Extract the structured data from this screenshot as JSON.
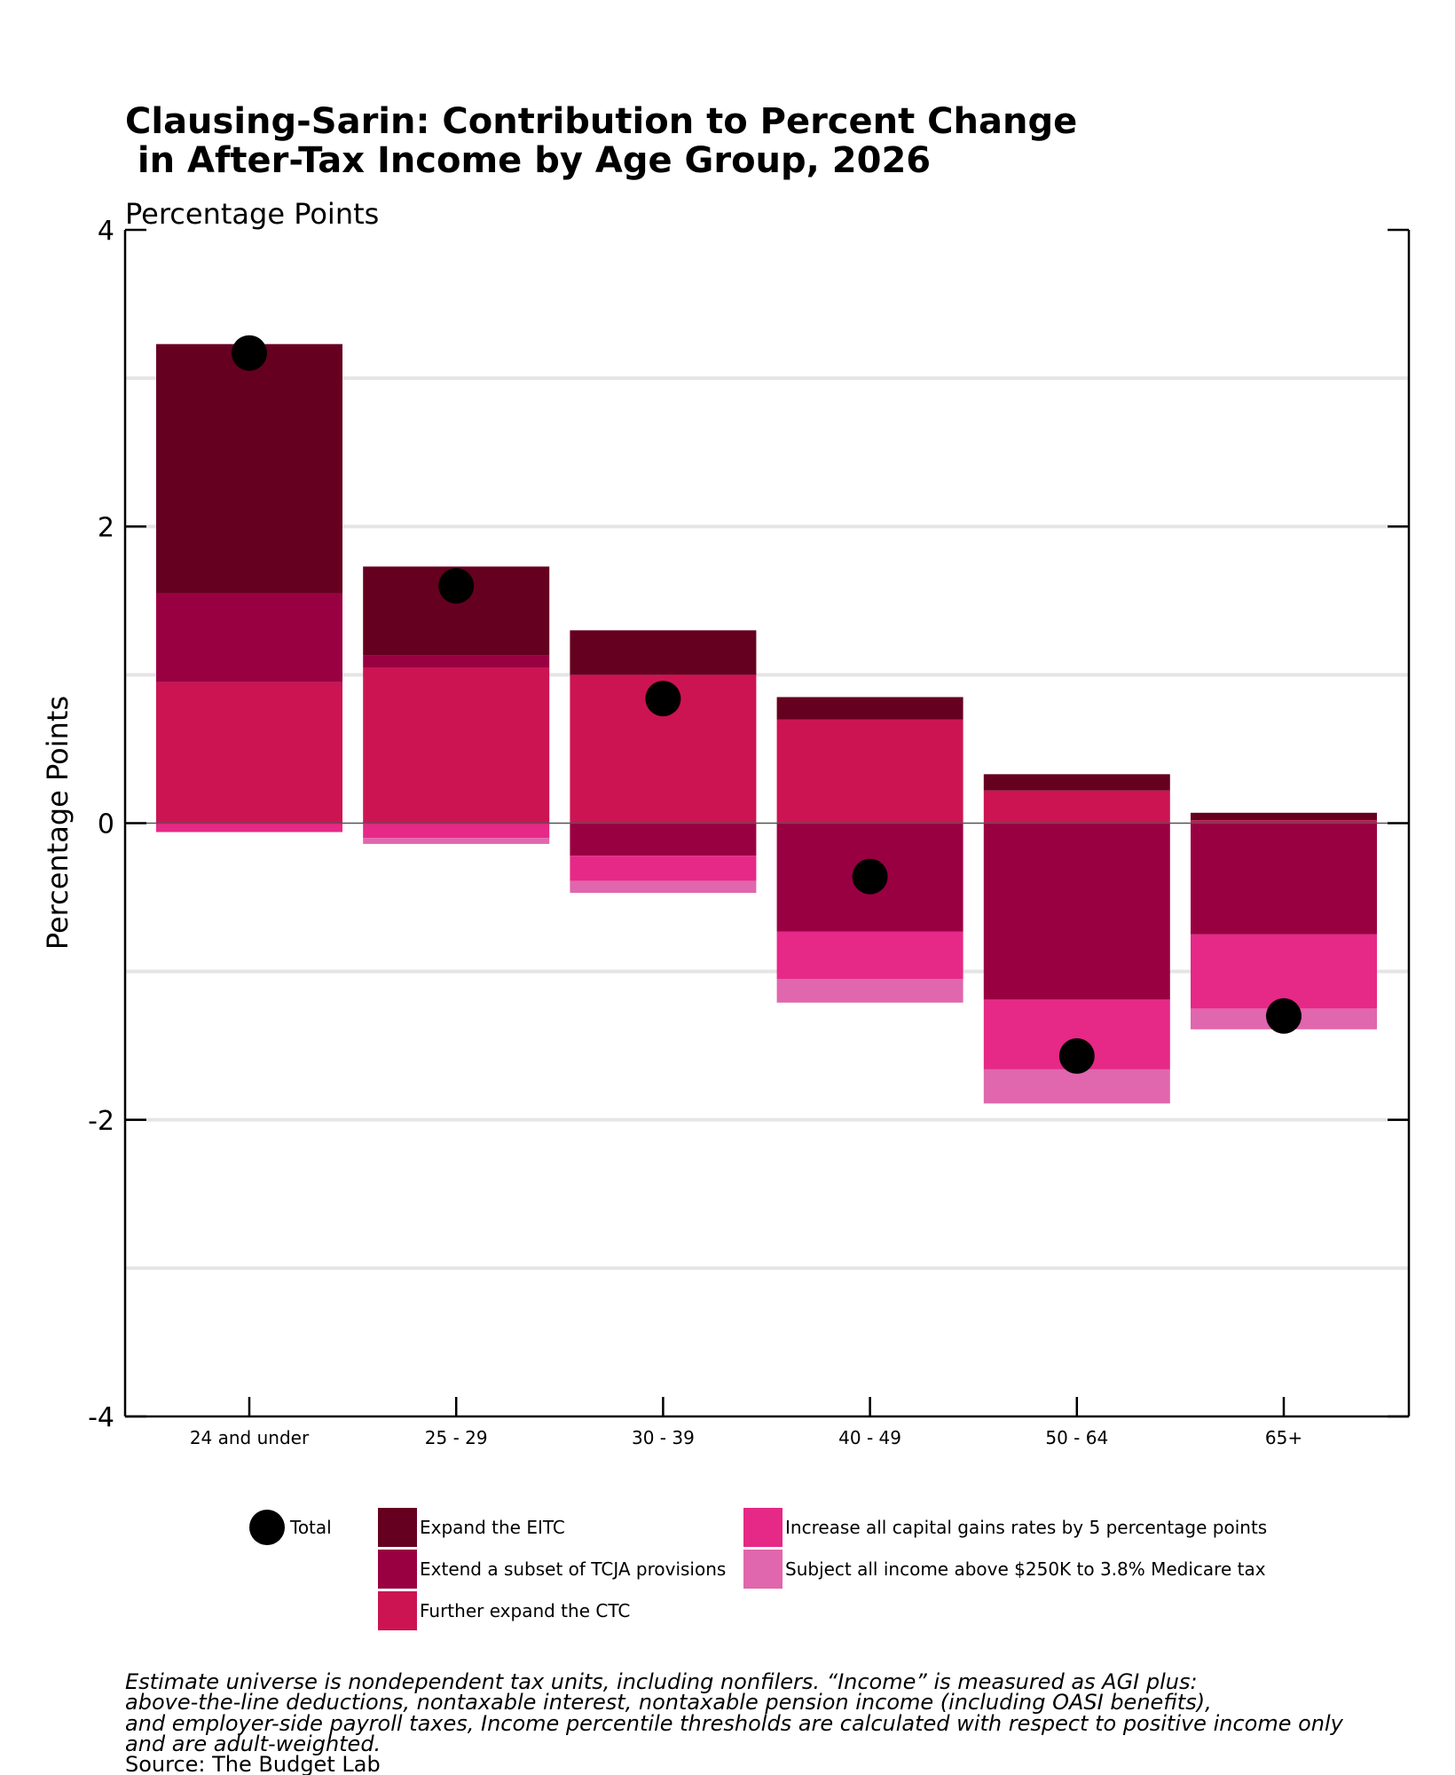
{
  "chart_data": {
    "type": "bar",
    "stacked": true,
    "title_line1": "Clausing-Sarin: Contribution to Percent Change",
    "title_line2": " in After-Tax Income by Age Group, 2026",
    "subtitle": "Percentage Points",
    "ylabel": "Percentage Points",
    "xlabel": "",
    "ylim": [
      -4,
      4
    ],
    "yticks": [
      -4,
      -2,
      0,
      2,
      4
    ],
    "ytick_labels": [
      "-4",
      "-2",
      "0",
      "2",
      "4"
    ],
    "grid": true,
    "categories": [
      "24 and under",
      "25 - 29",
      "30 - 39",
      "40 - 49",
      "50 - 64",
      "65+"
    ],
    "series": [
      {
        "name": "Further expand the CTC",
        "color": "#cc1453",
        "values": [
          0.95,
          1.05,
          1.0,
          0.7,
          0.22,
          0.02
        ]
      },
      {
        "name": "Extend a subset of TCJA provisions",
        "color": "#990042",
        "values": [
          0.6,
          0.08,
          -0.22,
          -0.73,
          -1.19,
          -0.75
        ]
      },
      {
        "name": "Expand the EITC",
        "color": "#660020",
        "values": [
          1.68,
          0.6,
          0.3,
          0.15,
          0.11,
          0.05
        ]
      },
      {
        "name": "Increase all capital gains rates by 5 percentage points",
        "color": "#e62887",
        "values": [
          -0.06,
          -0.1,
          -0.17,
          -0.32,
          -0.47,
          -0.5
        ]
      },
      {
        "name": "Subject all income above $250K to 3.8% Medicare tax",
        "color": "#e066ad",
        "values": [
          0.0,
          -0.04,
          -0.08,
          -0.16,
          -0.23,
          -0.14
        ]
      }
    ],
    "totals": {
      "name": "Total",
      "color": "#000000",
      "values": [
        3.17,
        1.6,
        0.84,
        -0.36,
        -1.57,
        -1.3
      ]
    },
    "legend_position": "bottom",
    "legend": [
      {
        "label": "Total",
        "kind": "dot",
        "color": "#000000"
      },
      {
        "label": "Expand the EITC",
        "kind": "box",
        "color": "#660020"
      },
      {
        "label": "Extend a subset of TCJA provisions",
        "kind": "box",
        "color": "#990042"
      },
      {
        "label": "Further expand the CTC",
        "kind": "box",
        "color": "#cc1453"
      },
      {
        "label": "Increase all capital gains rates by 5 percentage points",
        "kind": "box",
        "color": "#e62887"
      },
      {
        "label": "Subject all income above $250K to 3.8% Medicare tax",
        "kind": "box",
        "color": "#e066ad"
      }
    ],
    "note_lines": [
      "Estimate universe is nondependent tax units, including nonfilers. “Income” is measured as AGI plus:",
      "above-the-line deductions, nontaxable interest, nontaxable pension income (including OASI benefits),",
      "and employer-side payroll taxes, Income percentile thresholds are calculated with respect to positive income only",
      "and are adult-weighted."
    ],
    "source": "Source: The Budget Lab"
  }
}
